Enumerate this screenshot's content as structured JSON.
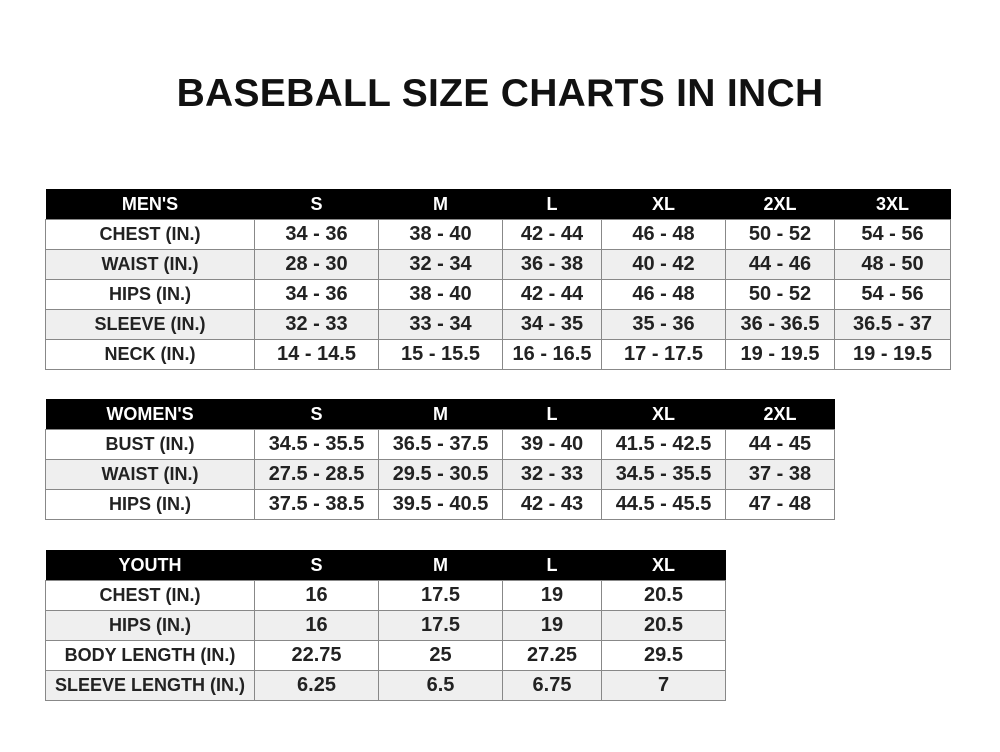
{
  "title": "BASEBALL SIZE CHARTS IN INCH",
  "tables": [
    {
      "id": "men",
      "headers": [
        "MEN'S",
        "S",
        "M",
        "L",
        "XL",
        "2XL",
        "3XL"
      ],
      "rows": [
        [
          "CHEST (IN.)",
          "34 - 36",
          "38 - 40",
          "42 - 44",
          "46 - 48",
          "50 - 52",
          "54 - 56"
        ],
        [
          "WAIST (IN.)",
          "28 - 30",
          "32 - 34",
          "36 - 38",
          "40 - 42",
          "44 - 46",
          "48 - 50"
        ],
        [
          "HIPS (IN.)",
          "34 - 36",
          "38 - 40",
          "42 - 44",
          "46 - 48",
          "50 - 52",
          "54 - 56"
        ],
        [
          "SLEEVE (IN.)",
          "32 - 33",
          "33 - 34",
          "34 - 35",
          "35 - 36",
          "36 - 36.5",
          "36.5 - 37"
        ],
        [
          "NECK (IN.)",
          "14 - 14.5",
          "15 - 15.5",
          "16 - 16.5",
          "17 - 17.5",
          "19 - 19.5",
          "19 - 19.5"
        ]
      ]
    },
    {
      "id": "women",
      "headers": [
        "WOMEN'S",
        "S",
        "M",
        "L",
        "XL",
        "2XL"
      ],
      "rows": [
        [
          "BUST (IN.)",
          "34.5 - 35.5",
          "36.5 - 37.5",
          "39 - 40",
          "41.5 - 42.5",
          "44 - 45"
        ],
        [
          "WAIST (IN.)",
          "27.5 - 28.5",
          "29.5 - 30.5",
          "32 - 33",
          "34.5 - 35.5",
          "37 - 38"
        ],
        [
          "HIPS (IN.)",
          "37.5 - 38.5",
          "39.5 - 40.5",
          "42 - 43",
          "44.5 - 45.5",
          "47 - 48"
        ]
      ]
    },
    {
      "id": "youth",
      "headers": [
        "YOUTH",
        "S",
        "M",
        "L",
        "XL"
      ],
      "rows": [
        [
          "CHEST (IN.)",
          "16",
          "17.5",
          "19",
          "20.5"
        ],
        [
          "HIPS (IN.)",
          "16",
          "17.5",
          "19",
          "20.5"
        ],
        [
          "BODY LENGTH (IN.)",
          "22.75",
          "25",
          "27.25",
          "29.5"
        ],
        [
          "SLEEVE LENGTH (IN.)",
          "6.25",
          "6.5",
          "6.75",
          "7"
        ]
      ]
    }
  ]
}
